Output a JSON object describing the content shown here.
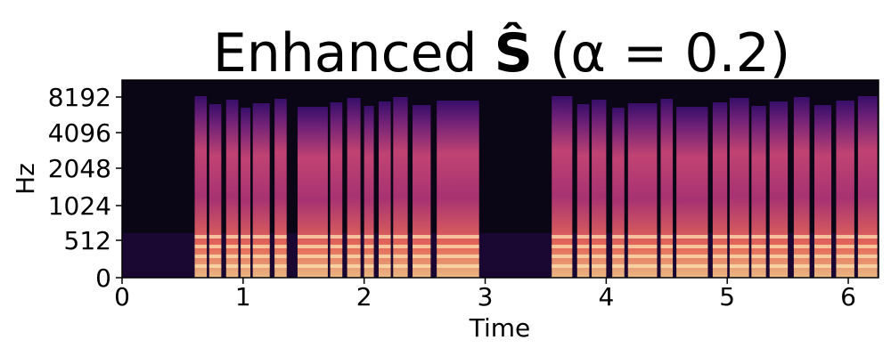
{
  "chart_data": {
    "type": "heatmap",
    "title": "Enhanced Ŝ (α = 0.2)",
    "title_parts": {
      "prefix": "Enhanced ",
      "symbol": "Ŝ",
      "suffix": " (α = 0.2)"
    },
    "xlabel": "Time",
    "ylabel": "Hz",
    "xlim": [
      0,
      6.25
    ],
    "y_scale": "symlog",
    "x_ticks": [
      0,
      1,
      2,
      3,
      4,
      5,
      6
    ],
    "x_tick_labels": [
      "0",
      "1",
      "2",
      "3",
      "4",
      "5",
      "6"
    ],
    "y_ticks": [
      0,
      512,
      1024,
      2048,
      4096,
      8192
    ],
    "y_tick_labels": [
      "0",
      "512",
      "1024",
      "2048",
      "4096",
      "8192"
    ],
    "colormap": "magma",
    "colors": {
      "background": "#0b0616",
      "low": "#3b0f70",
      "mid": "#b5367a",
      "high": "#fb8761",
      "peak": "#fcfdbf"
    },
    "speech_segments": [
      [
        0.6,
        0.7
      ],
      [
        0.72,
        0.82
      ],
      [
        0.86,
        0.96
      ],
      [
        0.98,
        1.06
      ],
      [
        1.08,
        1.22
      ],
      [
        1.26,
        1.36
      ],
      [
        1.45,
        1.7
      ],
      [
        1.72,
        1.82
      ],
      [
        1.86,
        1.97
      ],
      [
        2.0,
        2.08
      ],
      [
        2.12,
        2.22
      ],
      [
        2.24,
        2.36
      ],
      [
        2.4,
        2.55
      ],
      [
        2.6,
        2.95
      ],
      [
        3.55,
        3.72
      ],
      [
        3.76,
        3.86
      ],
      [
        3.88,
        4.0
      ],
      [
        4.05,
        4.15
      ],
      [
        4.18,
        4.42
      ],
      [
        4.45,
        4.55
      ],
      [
        4.58,
        4.84
      ],
      [
        4.88,
        5.0
      ],
      [
        5.02,
        5.18
      ],
      [
        5.2,
        5.32
      ],
      [
        5.35,
        5.5
      ],
      [
        5.55,
        5.68
      ],
      [
        5.72,
        5.86
      ],
      [
        5.9,
        6.05
      ],
      [
        6.08,
        6.24
      ]
    ]
  }
}
